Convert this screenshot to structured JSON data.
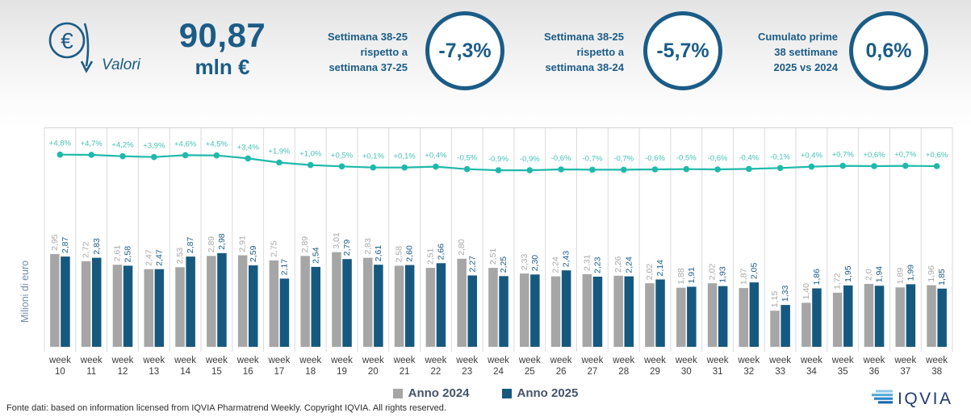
{
  "header": {
    "valori_label": "Valori",
    "big_value": "90,87",
    "big_unit": "mln €",
    "accent_color": "#1b5c87",
    "kpis": [
      {
        "label_lines": [
          "Settimana 38-25",
          "rispetto a",
          "settimana 37-25"
        ],
        "value": "-7,3%"
      },
      {
        "label_lines": [
          "Settimana 38-25",
          "rispetto a",
          "settimana 38-24"
        ],
        "value": "-5,7%"
      },
      {
        "label_lines": [
          "Cumulato prime",
          "38 settimane",
          "2025 vs 2024"
        ],
        "value": "0,6%"
      }
    ]
  },
  "chart_data": {
    "type": "bar",
    "title": "",
    "ylabel": "Milioni di euro",
    "xlabel_prefix": "week",
    "categories": [
      "10",
      "11",
      "12",
      "13",
      "14",
      "15",
      "16",
      "17",
      "18",
      "19",
      "20",
      "21",
      "22",
      "23",
      "24",
      "25",
      "26",
      "27",
      "28",
      "29",
      "30",
      "31",
      "32",
      "33",
      "34",
      "35",
      "36",
      "37",
      "38"
    ],
    "ylim": [
      0,
      3.5
    ],
    "grid": "vertical",
    "legend_position": "bottom-center",
    "series": [
      {
        "name": "Anno 2024",
        "color": "#a6a6a6",
        "label_color": "#a9a9a9",
        "values": [
          2.95,
          2.72,
          2.61,
          2.47,
          2.53,
          2.89,
          2.91,
          2.75,
          2.89,
          3.01,
          2.83,
          2.58,
          2.51,
          2.8,
          2.51,
          2.33,
          2.24,
          2.31,
          2.26,
          2.02,
          1.88,
          2.02,
          1.87,
          1.15,
          1.4,
          1.72,
          2.0,
          1.89,
          1.96
        ],
        "value_labels": [
          "2,95",
          "2,72",
          "2,61",
          "2,47",
          "2,53",
          "2,89",
          "2,91",
          "2,75",
          "2,89",
          "3,01",
          "2,83",
          "2,58",
          "2,51",
          "2,80",
          "2,51",
          "2,33",
          "2,24",
          "2,31",
          "2,26",
          "2,02",
          "1,88",
          "2,02",
          "1,87",
          "1,15",
          "1,40",
          "1,72",
          "2,0",
          "1,89",
          "1,96"
        ]
      },
      {
        "name": "Anno 2025",
        "color": "#16597f",
        "label_color": "#1b5c87",
        "values": [
          2.87,
          2.83,
          2.58,
          2.47,
          2.87,
          2.98,
          2.59,
          2.17,
          2.54,
          2.79,
          2.61,
          2.6,
          2.66,
          2.27,
          2.25,
          2.3,
          2.43,
          2.23,
          2.24,
          2.14,
          1.91,
          1.93,
          2.05,
          1.33,
          1.86,
          1.95,
          1.94,
          1.99,
          1.85
        ],
        "value_labels": [
          "2,87",
          "2,83",
          "2,58",
          "2,47",
          "2,87",
          "2,98",
          "2,59",
          "2,17",
          "2,54",
          "2,79",
          "2,61",
          "2,60",
          "2,66",
          "2,27",
          "2,25",
          "2,30",
          "2,43",
          "2,23",
          "2,24",
          "2,14",
          "1,91",
          "1,93",
          "2,05",
          "1,33",
          "1,86",
          "1,95",
          "1,94",
          "1,99",
          "1,85"
        ]
      }
    ],
    "line_series": {
      "type": "line",
      "color": "#1fb9ab",
      "label_color": "#45c1b5",
      "values": [
        4.8,
        4.7,
        4.2,
        3.9,
        4.6,
        4.5,
        3.4,
        1.9,
        1.0,
        0.5,
        0.1,
        0.1,
        0.4,
        -0.5,
        -0.9,
        -0.9,
        -0.6,
        -0.7,
        -0.7,
        -0.6,
        -0.5,
        -0.6,
        -0.4,
        -0.1,
        0.4,
        0.7,
        0.6,
        0.7,
        0.6
      ],
      "labels": [
        "+4,8%",
        "+4,7%",
        "+4,2%",
        "+3,9%",
        "+4,6%",
        "+4,5%",
        "+3,4%",
        "+1,9%",
        "+1,0%",
        "+0,5%",
        "+0,1%",
        "+0,1%",
        "+0,4%",
        "-0,5%",
        "-0,9%",
        "-0,9%",
        "-0,6%",
        "-0,7%",
        "-0,7%",
        "-0,6%",
        "-0,5%",
        "-0,6%",
        "-0,4%",
        "-0,1%",
        "+0,4%",
        "+0,7%",
        "+0,6%",
        "+0,7%",
        "+0,6%"
      ]
    }
  },
  "footer": {
    "source": "Fonte dati: based on information licensed from IQVIA Pharmatrend Weekly. Copyright IQVIA. All rights reserved.",
    "logo_text": "IQVIA"
  }
}
